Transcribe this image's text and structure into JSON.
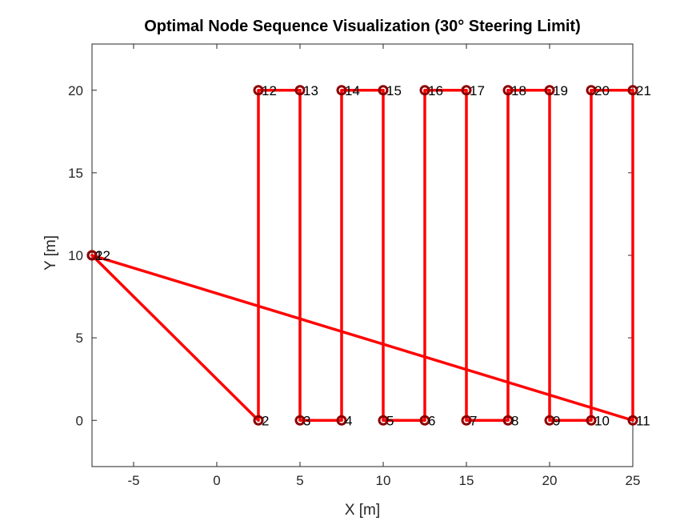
{
  "chart_data": {
    "type": "line",
    "title": "Optimal Node Sequence Visualization (30° Steering Limit)",
    "xlabel": "X [m]",
    "ylabel": "Y [m]",
    "xlim": [
      -7.5,
      25
    ],
    "ylim": [
      -2.8,
      22.8
    ],
    "xticks": [
      -5,
      0,
      5,
      10,
      15,
      20,
      25
    ],
    "yticks": [
      0,
      5,
      10,
      15,
      20
    ],
    "grid": false,
    "line_color": "#ff0000",
    "marker_color": "#8b0000",
    "nodes": [
      {
        "id": "1",
        "x": -7.5,
        "y": 10
      },
      {
        "id": "2",
        "x": 2.5,
        "y": 0
      },
      {
        "id": "3",
        "x": 5,
        "y": 0
      },
      {
        "id": "4",
        "x": 7.5,
        "y": 0
      },
      {
        "id": "5",
        "x": 10,
        "y": 0
      },
      {
        "id": "6",
        "x": 12.5,
        "y": 0
      },
      {
        "id": "7",
        "x": 15,
        "y": 0
      },
      {
        "id": "8",
        "x": 17.5,
        "y": 0
      },
      {
        "id": "9",
        "x": 20,
        "y": 0
      },
      {
        "id": "10",
        "x": 22.5,
        "y": 0
      },
      {
        "id": "11",
        "x": 25,
        "y": 0
      },
      {
        "id": "12",
        "x": 2.5,
        "y": 20
      },
      {
        "id": "13",
        "x": 5,
        "y": 20
      },
      {
        "id": "14",
        "x": 7.5,
        "y": 20
      },
      {
        "id": "15",
        "x": 10,
        "y": 20
      },
      {
        "id": "16",
        "x": 12.5,
        "y": 20
      },
      {
        "id": "17",
        "x": 15,
        "y": 20
      },
      {
        "id": "18",
        "x": 17.5,
        "y": 20
      },
      {
        "id": "19",
        "x": 20,
        "y": 20
      },
      {
        "id": "20",
        "x": 22.5,
        "y": 20
      },
      {
        "id": "21",
        "x": 25,
        "y": 20
      },
      {
        "id": "22",
        "x": -7.5,
        "y": 10
      }
    ],
    "sequence": [
      "1",
      "2",
      "12",
      "13",
      "3",
      "4",
      "14",
      "15",
      "5",
      "6",
      "16",
      "17",
      "7",
      "8",
      "18",
      "19",
      "9",
      "10",
      "20",
      "21",
      "11",
      "22"
    ]
  }
}
